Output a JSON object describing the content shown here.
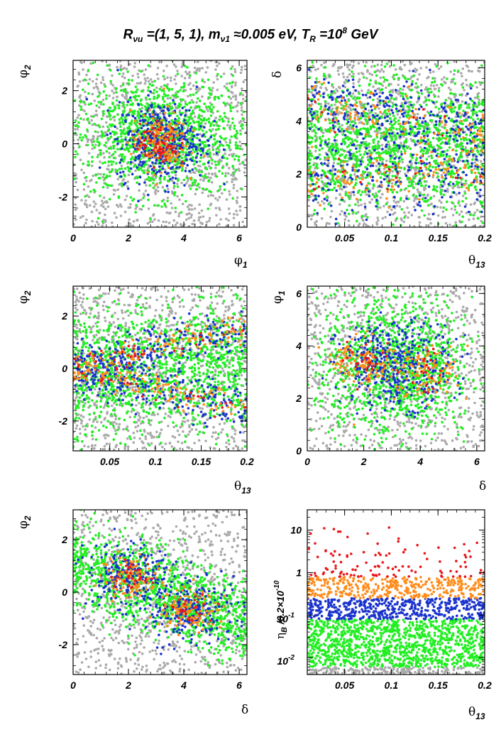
{
  "figure": {
    "title_main": "R",
    "title_sub": "νu",
    "title_text1": " =(1, 5, 1), m",
    "title_sub2": "ν1",
    "title_text2": " ≈0.005 eV, T",
    "title_sub3": "R",
    "title_text3": " =10",
    "title_sup": "8",
    "title_text4": " GeV"
  },
  "colors": {
    "gray": "#aaaaaa",
    "green": "#22ee22",
    "blue": "#1a33cc",
    "orange": "#ff8c1a",
    "red": "#e8181a"
  },
  "chart_data": [
    {
      "type": "scatter",
      "panel": "phi1-phi2",
      "xlabel": "φ1",
      "ylabel": "φ2",
      "xlim": [
        0,
        6.28
      ],
      "ylim": [
        -3.14,
        3.14
      ],
      "xticks": [
        "0",
        "2",
        "4",
        "6"
      ],
      "xtick_values": [
        0,
        2,
        4,
        6
      ],
      "yticks": [
        "-2",
        "0",
        "2"
      ],
      "ytick_values": [
        -2,
        0,
        2
      ],
      "series": [
        {
          "color": "gray",
          "description_points": "background, broad"
        },
        {
          "color": "green"
        },
        {
          "color": "blue",
          "center": [
            3.2,
            0.1
          ],
          "spread": [
            0.9,
            0.8
          ]
        },
        {
          "color": "orange",
          "center": [
            3.1,
            0.1
          ],
          "spread": [
            0.6,
            0.6
          ]
        },
        {
          "color": "red",
          "center": [
            3.1,
            0.0
          ],
          "spread": [
            0.4,
            0.45
          ]
        }
      ]
    },
    {
      "type": "scatter",
      "panel": "theta13-delta",
      "xlabel": "θ13",
      "ylabel": "δ",
      "xlim": [
        0.01,
        0.2
      ],
      "ylim": [
        0,
        6.28
      ],
      "xticks": [
        "0.05",
        "0.1",
        "0.15",
        "0.2"
      ],
      "xtick_values": [
        0.05,
        0.1,
        0.15,
        0.2
      ],
      "yticks": [
        "0",
        "2",
        "4",
        "6"
      ],
      "ytick_values": [
        0,
        2,
        4,
        6
      ]
    },
    {
      "type": "scatter",
      "panel": "theta13-phi2",
      "xlabel": "θ13",
      "ylabel": "φ2",
      "xlim": [
        0.01,
        0.2
      ],
      "ylim": [
        -3.14,
        3.14
      ],
      "xticks": [
        "0.05",
        "0.1",
        "0.15",
        "0.2"
      ],
      "xtick_values": [
        0.05,
        0.1,
        0.15,
        0.2
      ],
      "yticks": [
        "-2",
        "0",
        "2"
      ],
      "ytick_values": [
        -2,
        0,
        2
      ]
    },
    {
      "type": "scatter",
      "panel": "delta-phi1",
      "xlabel": "δ",
      "ylabel": "φ1",
      "xlim": [
        0,
        6.28
      ],
      "ylim": [
        0,
        6.28
      ],
      "xticks": [
        "0",
        "2",
        "4",
        "6"
      ],
      "xtick_values": [
        0,
        2,
        4,
        6
      ],
      "yticks": [
        "0",
        "2",
        "4",
        "6"
      ],
      "ytick_values": [
        0,
        2,
        4,
        6
      ]
    },
    {
      "type": "scatter",
      "panel": "delta-phi2",
      "xlabel": "δ",
      "ylabel": "φ2",
      "xlim": [
        0,
        6.28
      ],
      "ylim": [
        -3.14,
        3.14
      ],
      "xticks": [
        "0",
        "2",
        "4",
        "6"
      ],
      "xtick_values": [
        0,
        2,
        4,
        6
      ],
      "yticks": [
        "-2",
        "0",
        "2"
      ],
      "ytick_values": [
        -2,
        0,
        2
      ]
    },
    {
      "type": "scatter",
      "panel": "theta13-etaB",
      "xlabel": "θ13",
      "ylabel": "ηB /6.2×10-10",
      "xlim": [
        0.01,
        0.2
      ],
      "ylim": [
        0.004,
        30
      ],
      "yscale": "log",
      "xticks": [
        "0.05",
        "0.1",
        "0.15",
        "0.2"
      ],
      "xtick_values": [
        0.05,
        0.1,
        0.15,
        0.2
      ],
      "yticks": [
        "10",
        "1",
        "10-1",
        "10-2"
      ],
      "ytick_values": [
        10,
        1,
        0.1,
        0.01
      ],
      "bands": [
        {
          "color": "gray",
          "range": [
            0.004,
            0.006
          ]
        },
        {
          "color": "green",
          "range": [
            0.006,
            0.08
          ]
        },
        {
          "color": "blue",
          "range": [
            0.08,
            0.25
          ]
        },
        {
          "color": "orange",
          "range": [
            0.25,
            0.8
          ]
        },
        {
          "color": "red",
          "range": [
            0.8,
            12
          ]
        }
      ]
    }
  ]
}
